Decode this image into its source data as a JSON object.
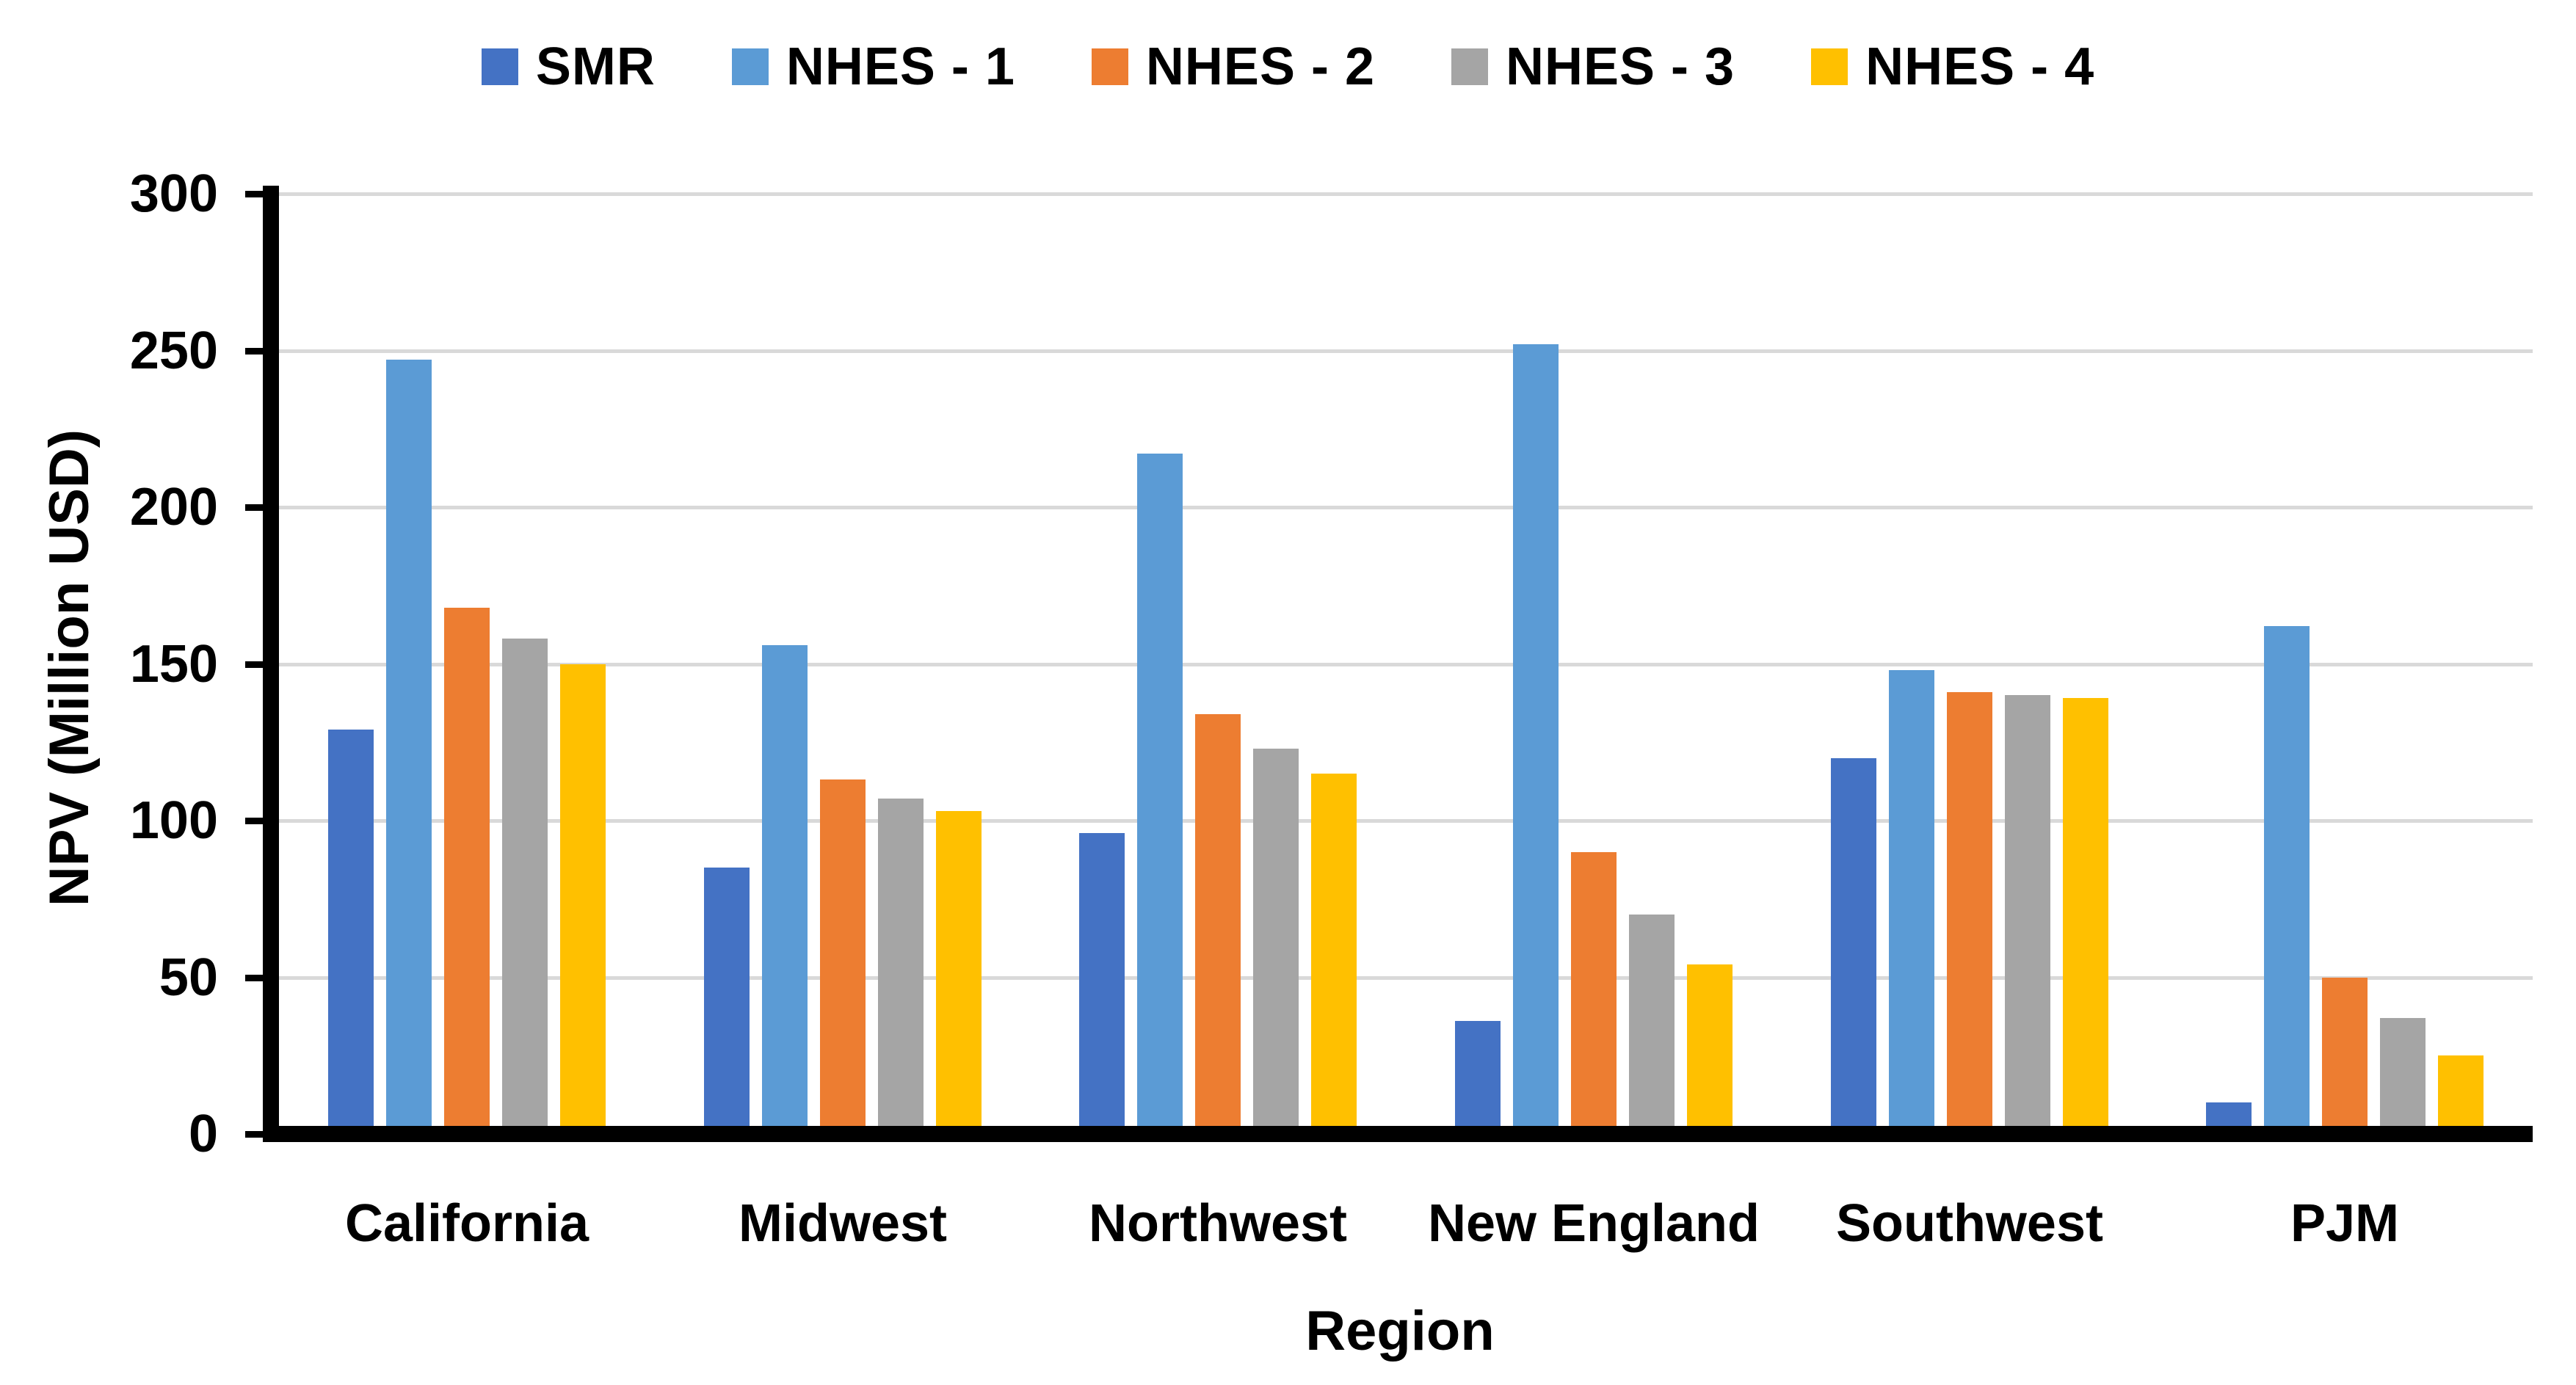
{
  "figure": {
    "background": "#FFFFFF",
    "text_color": "#000000"
  },
  "chart_data": {
    "type": "bar",
    "title": "",
    "categories": [
      "California",
      "Midwest",
      "Northwest",
      "New England",
      "Southwest",
      "PJM"
    ],
    "series": [
      {
        "name": "SMR",
        "color": "#4472C4",
        "values": [
          129,
          85,
          96,
          36,
          120,
          10
        ]
      },
      {
        "name": "NHES - 1",
        "color": "#5B9BD5",
        "values": [
          247,
          156,
          217,
          252,
          148,
          162
        ]
      },
      {
        "name": "NHES - 2",
        "color": "#ED7D31",
        "values": [
          168,
          113,
          134,
          90,
          141,
          50
        ]
      },
      {
        "name": "NHES - 3",
        "color": "#A5A5A5",
        "values": [
          158,
          107,
          123,
          70,
          140,
          37
        ]
      },
      {
        "name": "NHES - 4",
        "color": "#FFC000",
        "values": [
          150,
          103,
          115,
          54,
          139,
          25
        ]
      }
    ],
    "xlabel": "Region",
    "ylabel": "NPV (Million USD)",
    "ylim": [
      0,
      300
    ],
    "ytick_step": 50,
    "ytick_labels": [
      "0",
      "50",
      "100",
      "150",
      "200",
      "250",
      "300"
    ],
    "grid": "horizontal",
    "gridline_color": "#D9D9D9",
    "axis_color": "#000000",
    "legend_position": "top"
  }
}
